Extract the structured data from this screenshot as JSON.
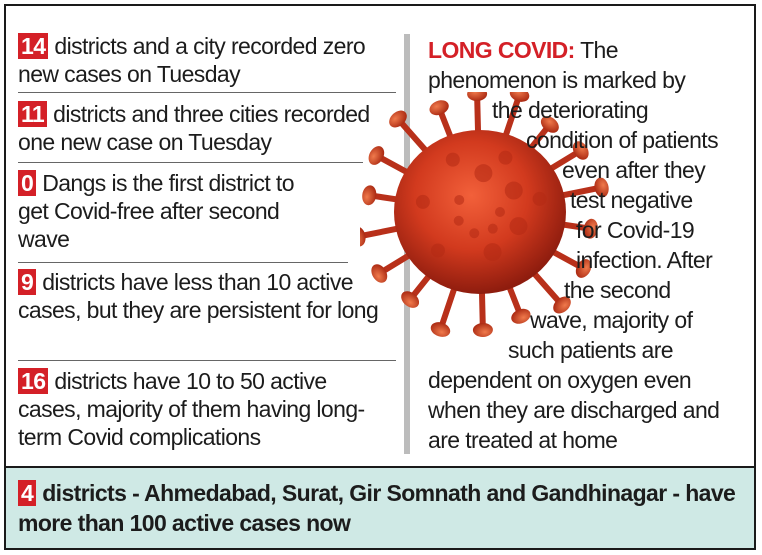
{
  "facts": [
    {
      "number": "14",
      "text": "districts and a city recorded zero new cases on Tuesday"
    },
    {
      "number": "11",
      "text": "districts and three cities recorded one new case on Tuesday"
    },
    {
      "number": "0",
      "text": "Dangs is the first district to get Covid-free after second wave"
    },
    {
      "number": "9",
      "text": "districts have less than 10 active cases, but they are persistent for long"
    },
    {
      "number": "16",
      "text": "districts have 10 to 50 active cases, majority of them having long-term Covid complications"
    }
  ],
  "long_covid": {
    "title": "LONG COVID:",
    "lines": [
      "The",
      "phenomenon is marked by",
      "the deteriorating",
      "condition of patients",
      "even after they",
      "test negative",
      "for Covid-19",
      "infection. After",
      "the second",
      "wave, majority of",
      "such patients are",
      "dependent on oxygen even",
      "when they are discharged and",
      "are treated at home"
    ]
  },
  "footer": {
    "number": "4",
    "text": "districts - Ahmedabad, Surat, Gir Somnath and Gandhinagar - have more than 100 active cases now"
  },
  "colors": {
    "accent_red": "#d42027",
    "footer_bg": "#cfe9e5",
    "divider": "#bcbcbc"
  },
  "illustration": "coronavirus-icon"
}
